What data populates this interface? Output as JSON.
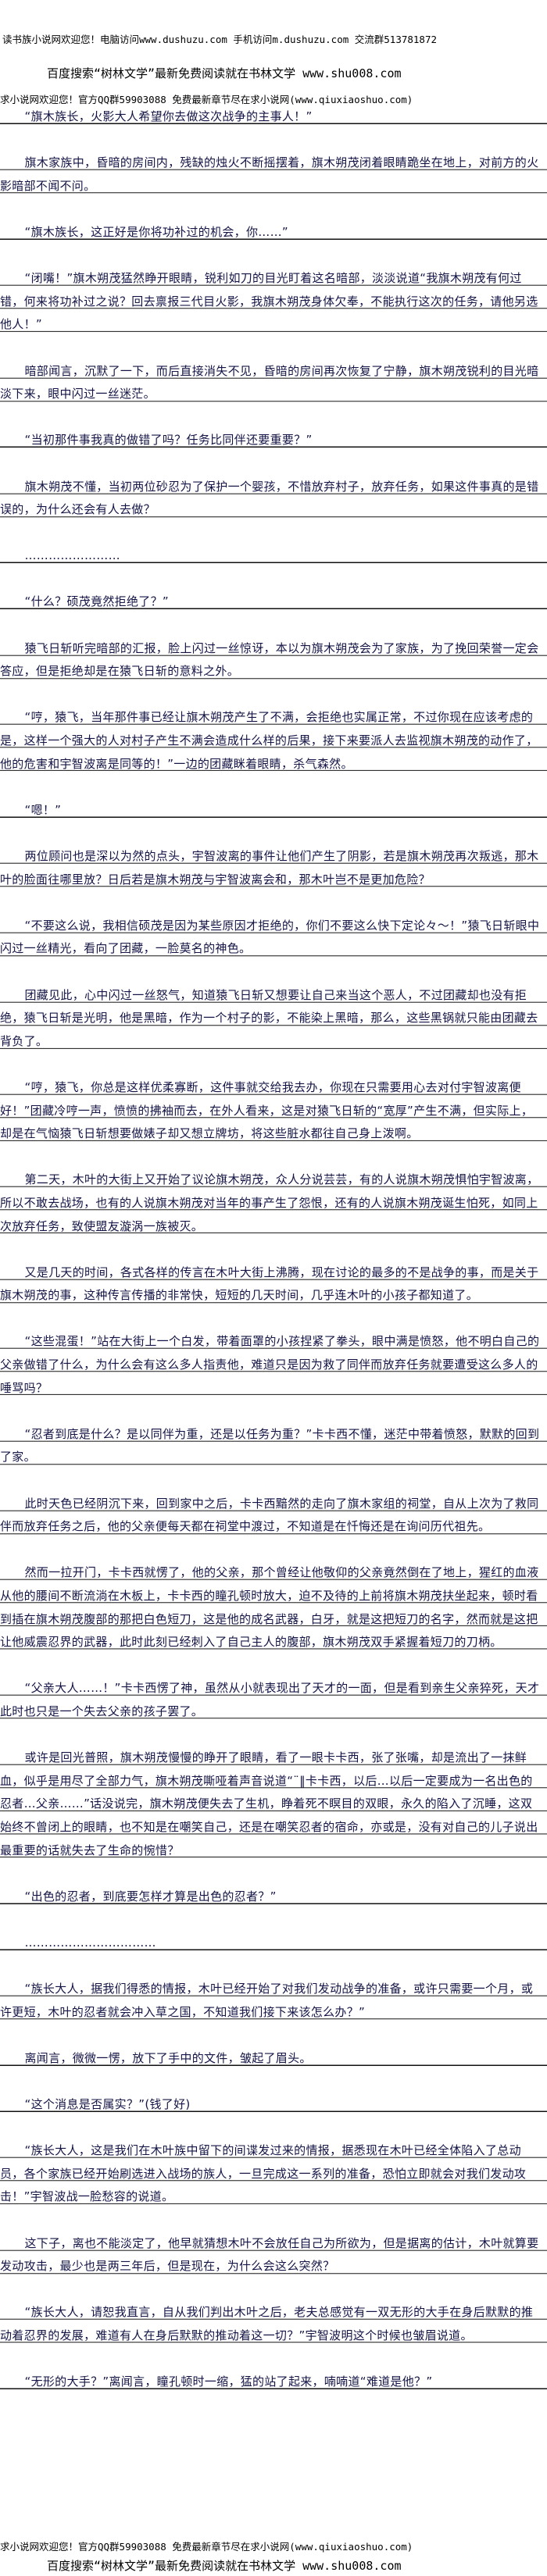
{
  "header": {
    "line1": "读书族小说网欢迎您！电脑访问www.dushuzu.com 手机访问m.dushuzu.com 交流群513781872",
    "line2": "百度搜索“树林文学”最新免费阅读就在书林文学 www.shu008.com",
    "line3": "求小说网欢迎您！官方QQ群59903088 免费最新章节尽在求小说网(www.qiuxiaoshuo.com)"
  },
  "paragraphs": [
    "“旗木族长，火影大人希望你去做这次战争的主事人！”",
    "旗木家族中，昏暗的房间内，残缺的烛火不断摇摆着，旗木朔茂闭着眼睛跪坐在地上，对前方的火影暗部不闻不问。",
    "“旗木族长，这正好是你将功补过的机会，你……”",
    "“闭嘴！”旗木朔茂猛然睁开眼睛，锐利如刀的目光盯着这名暗部，淡淡说道“我旗木朔茂有何过错，何来将功补过之说？回去禀报三代目火影，我旗木朔茂身体欠奉，不能执行这次的任务，请他另选他人！”",
    "暗部闻言，沉默了一下，而后直接消失不见，昏暗的房间再次恢复了宁静，旗木朔茂锐利的目光暗淡下来，眼中闪过一丝迷茫。",
    "“当初那件事我真的做错了吗？任务比同伴还要重要？”",
    "旗木朔茂不懂，当初两位砂忍为了保护一个婴孩，不惜放弃村子，放弃任务，如果这件事真的是错误的，为什么还会有人去做？",
    "……………………",
    "“什么？硕茂竟然拒绝了？”",
    "猿飞日斩听完暗部的汇报，脸上闪过一丝惊讶，本以为旗木朔茂会为了家族，为了挽回荣誉一定会答应，但是拒绝却是在猿飞日斩的意料之外。",
    "“哼，猿飞，当年那件事已经让旗木朔茂产生了不满，会拒绝也实属正常，不过你现在应该考虑的是，这样一个强大的人对村子产生不满会造成什么样的后果，接下来要派人去监视旗木朔茂的动作了，他的危害和宇智波离是同等的！”一边的团藏眯着眼睛，杀气森然。",
    "“嗯！”",
    "两位顾问也是深以为然的点头，宇智波离的事件让他们产生了阴影，若是旗木朔茂再次叛逃，那木叶的脸面往哪里放？日后若是旗木朔茂与宇智波离会和，那木叶岂不是更加危险？",
    "“不要这么说，我相信硕茂是因为某些原因才拒绝的，你们不要这么快下定论々～！”猿飞日斩眼中闪过一丝精光，看向了团藏，一脸莫名的神色。",
    "团藏见此，心中闪过一丝怒气，知道猿飞日斩又想要让自己来当这个恶人，不过团藏却也没有拒绝，猿飞日斩是光明，他是黑暗，作为一个村子的影，不能染上黑暗，那么，这些黑锅就只能由团藏去背负了。",
    "“哼，猿飞，你总是这样优柔寡断，这件事就交给我去办，你现在只需要用心去对付宇智波离便好！”团藏冷哼一声，愤愤的拂袖而去，在外人看来，这是对猿飞日斩的“宽厚”产生不满，但实际上，却是在气恼猿飞日斩想要做婊子却又想立牌坊，将这些脏水都往自己身上泼啊。",
    "第二天，木叶的大街上又开始了议论旗木朔茂，众人分说芸芸，有的人说旗木朔茂惧怕宇智波离，所以不敢去战场，也有的人说旗木朔茂对当年的事产生了怨恨，还有的人说旗木朔茂诞生怕死，如同上次放弃任务，致使盟友漩涡一族被灭。",
    "又是几天的时间，各式各样的传言在木叶大街上沸腾，现在讨论的最多的不是战争的事，而是关于旗木朔茂的事，这种传言传播的非常快，短短的几天时间，几乎连木叶的小孩子都知道了。",
    "“这些混蛋！”站在大街上一个白发，带着面罩的小孩捏紧了拳头，眼中满是愤怒，他不明白自己的父亲做错了什么，为什么会有这么多人指责他，难道只是因为救了同伴而放弃任务就要遭受这么多人的唾骂吗？",
    "“忍者到底是什么？是以同伴为重，还是以任务为重？”卡卡西不懂，迷茫中带着愤怒，默默的回到了家。",
    "此时天色已经阴沉下来，回到家中之后，卡卡西黯然的走向了旗木家组的祠堂，自从上次为了救同伴而放弃任务之后，他的父亲便每天都在祠堂中渡过，不知道是在忏悔还是在询问历代祖先。",
    "然而一拉开门，卡卡西就愣了，他的父亲，那个曾经让他敬仰的父亲竟然倒在了地上，猩红的血液从他的腰间不断流淌在木板上，卡卡西的瞳孔顿时放大，迫不及待的上前将旗木朔茂扶坐起来，顿时看到插在旗木朔茂腹部的那把白色短刀，这是他的成名武器，白牙，就是这把短刀的名字，然而就是这把让他威震忍界的武器，此时此刻已经刺入了自己主人的腹部，旗木朔茂双手紧握着短刀的刀柄。",
    "“父亲大人……！”卡卡西愣了神，虽然从小就表现出了天才的一面，但是看到亲生父亲猝死，天才此时也只是一个失去父亲的孩子罢了。",
    "或许是回光普照，旗木朔茂慢慢的睁开了眼睛，看了一眼卡卡西，张了张嘴，却是流出了一抹鲜血，似乎是用尽了全部力气，旗木朔茂嘶哑着声音说道“¨‖卡卡西，以后…以后一定要成为一名出色的忍者…父亲……”话没说完，旗木朔茂便失去了生机，睁着死不瞑目的双眼，永久的陷入了沉睡，这双始终不曾闭上的眼睛，也不知是在嘲笑自己，还是在嘲笑忍者的宿命，亦或是，没有对自己的儿子说出最重要的话就失去了生命的惋惜？",
    "“出色的忍者，到底要怎样才算是出色的忍者？”",
    "……………………………",
    "“族长大人，据我们得悉的情报，木叶已经开始了对我们发动战争的准备，或许只需要一个月，或许更短，木叶的忍者就会冲入草之国，不知道我们接下来该怎么办？”",
    "离闻言，微微一愣，放下了手中的文件，皱起了眉头。",
    "“这个消息是否属实？”(钱了好)",
    "“族长大人，这是我们在木叶族中留下的间谍发过来的情报，据悉现在木叶已经全体陷入了总动员，各个家族已经开始刷选进入战场的族人，一旦完成这一系列的准备，恐怕立即就会对我们发动攻击！”宇智波战一脸愁容的说道。",
    "这下子，离也不能淡定了，他早就猜想木叶不会放任自己为所欲为，但是据离的估计，木叶就算要发动攻击，最少也是两三年后，但是现在，为什么会这么突然？",
    "“族长大人，请恕我直言，自从我们判出木叶之后，老夫总感觉有一双无形的大手在身后默默的推动着忍界的发展，难道有人在身后默默的推动着这一切？”宇智波明这个时候也皱眉说道。",
    "“无形的大手？”离闻言，瞳孔顿时一缩，猛的站了起来，喃喃道“难道是他？”"
  ],
  "footer": {
    "line1": "求小说网欢迎您！官方QQ群59903088 免费最新章节尽在求小说网(www.qiuxiaoshuo.com)",
    "line2": "百度搜索“树林文学”最新免费阅读就在书林文学 www.shu008.com"
  }
}
